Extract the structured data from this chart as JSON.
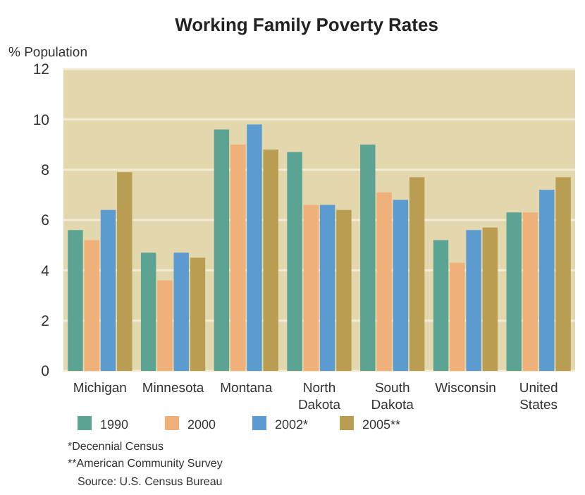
{
  "chart_data": {
    "type": "bar",
    "title": "Working Family Poverty Rates",
    "ylabel": "% Population",
    "categories": [
      "Michigan",
      "Minnesota",
      "Montana",
      "North Dakota",
      "South Dakota",
      "Wisconsin",
      "United States"
    ],
    "series": [
      {
        "name": "1990",
        "color": "#5ba393",
        "values": [
          5.6,
          4.7,
          9.6,
          8.7,
          9.0,
          5.2,
          6.3
        ]
      },
      {
        "name": "2000",
        "color": "#f0b07a",
        "values": [
          5.2,
          3.6,
          9.0,
          6.6,
          7.1,
          4.3,
          6.3
        ]
      },
      {
        "name": "2002*",
        "color": "#5b9bd0",
        "values": [
          6.4,
          4.7,
          9.8,
          6.6,
          6.8,
          5.6,
          7.2
        ]
      },
      {
        "name": "2005**",
        "color": "#b89d52",
        "values": [
          7.9,
          4.5,
          8.8,
          6.4,
          7.7,
          5.7,
          7.7
        ]
      }
    ],
    "ylim": [
      0,
      12
    ],
    "yticks": [
      0,
      2,
      4,
      6,
      8,
      10,
      12
    ],
    "grid": "y",
    "legend": "bottom",
    "annotations": [
      "*Decennial Census",
      "**American Community Survey",
      "Source: U.S. Census Bureau"
    ]
  }
}
